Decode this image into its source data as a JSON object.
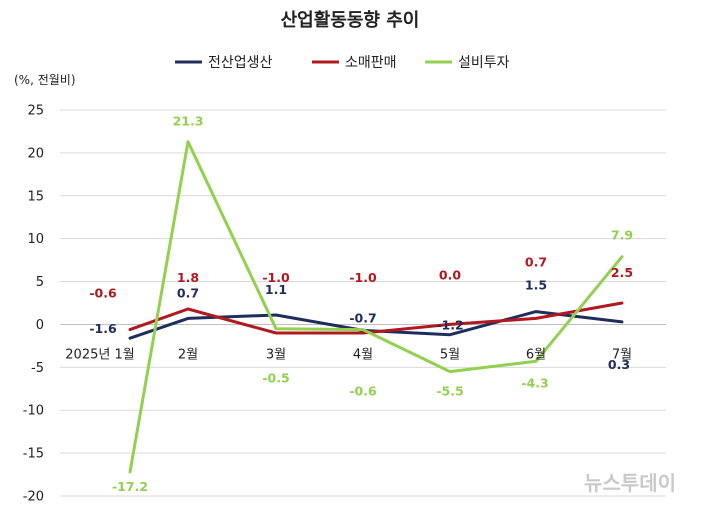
{
  "chart_data": {
    "type": "line",
    "title": "산업활동동향 추이",
    "unit_label": "(%, 전월비)",
    "categories": [
      "2025년 1월",
      "2월",
      "3월",
      "4월",
      "5월",
      "6월",
      "7월"
    ],
    "ylim": [
      -20,
      25
    ],
    "yticks": [
      25,
      20,
      15,
      10,
      5,
      0,
      -5,
      -10,
      -15,
      -20
    ],
    "grid": true,
    "legend_position": "top",
    "series": [
      {
        "name": "전산업생산",
        "color": "#1f2d5c",
        "values": [
          -1.6,
          0.7,
          1.1,
          -0.7,
          -1.2,
          1.5,
          0.3
        ],
        "labels": [
          "-1.6",
          "0.7",
          "1.1",
          "-0.7",
          "-1.2",
          "1.5",
          "0.3"
        ]
      },
      {
        "name": "소매판매",
        "color": "#b0191e",
        "values": [
          -0.6,
          1.8,
          -1.0,
          -1.0,
          0.0,
          0.7,
          2.5
        ],
        "labels": [
          "-0.6",
          "1.8",
          "-1.0",
          "-1.0",
          "0.0",
          "0.7",
          "2.5"
        ]
      },
      {
        "name": "설비투자",
        "color": "#92d050",
        "values": [
          -17.2,
          21.3,
          -0.5,
          -0.6,
          -5.5,
          -4.3,
          7.9
        ],
        "labels": [
          "-17.2",
          "21.3",
          "-0.5",
          "-0.6",
          "-5.5",
          "-4.3",
          "7.9"
        ]
      }
    ]
  },
  "watermark": "뉴스투데이"
}
